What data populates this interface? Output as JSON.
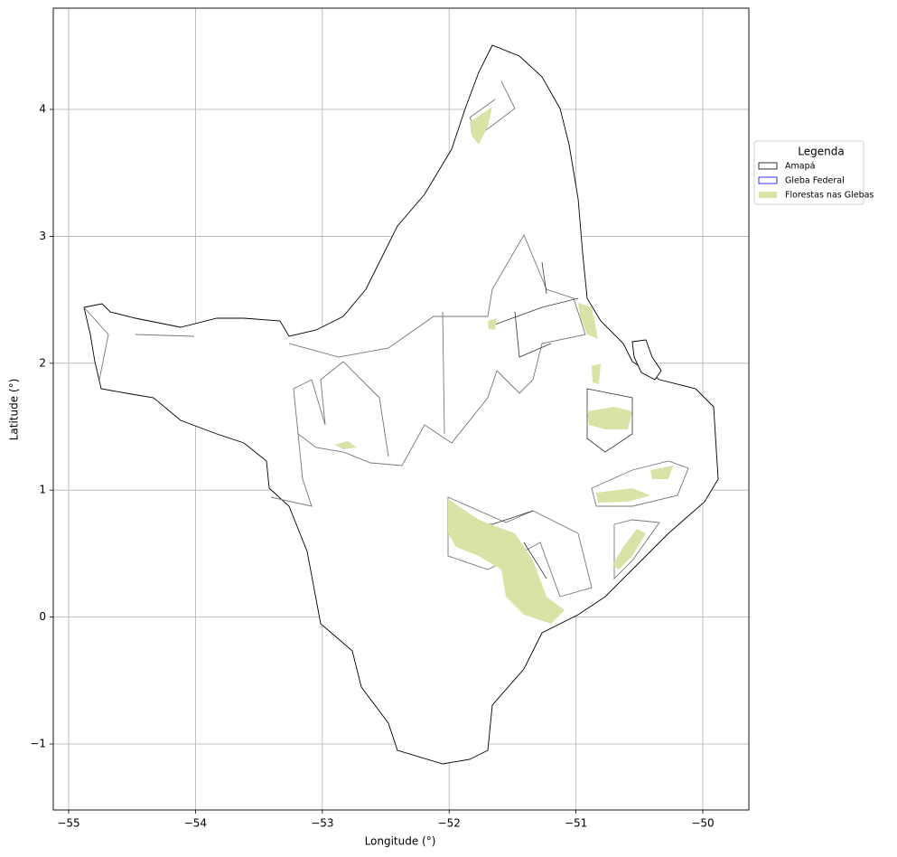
{
  "chart_data": {
    "type": "map",
    "xlabel": "Longitude (°)",
    "ylabel": "Latitude (°)",
    "xlim": [
      -55.121,
      -49.637
    ],
    "ylim": [
      -1.52,
      4.798
    ],
    "xticks": [
      {
        "value": -55,
        "label": "−55"
      },
      {
        "value": -54,
        "label": "−54"
      },
      {
        "value": -53,
        "label": "−53"
      },
      {
        "value": -52,
        "label": "−52"
      },
      {
        "value": -51,
        "label": "−51"
      },
      {
        "value": -50,
        "label": "−50"
      }
    ],
    "yticks": [
      {
        "value": -1,
        "label": "−1"
      },
      0,
      1,
      2,
      3,
      4
    ],
    "grid": true,
    "legend": {
      "title": "Legenda",
      "position": "center right",
      "entries": [
        {
          "name": "Amapá",
          "color": "#000000"
        },
        {
          "name": "Gleba Federal",
          "color": "#0000ff"
        },
        {
          "name": "Florestas nas Glebas",
          "color": "#d9e3a6"
        }
      ]
    }
  }
}
